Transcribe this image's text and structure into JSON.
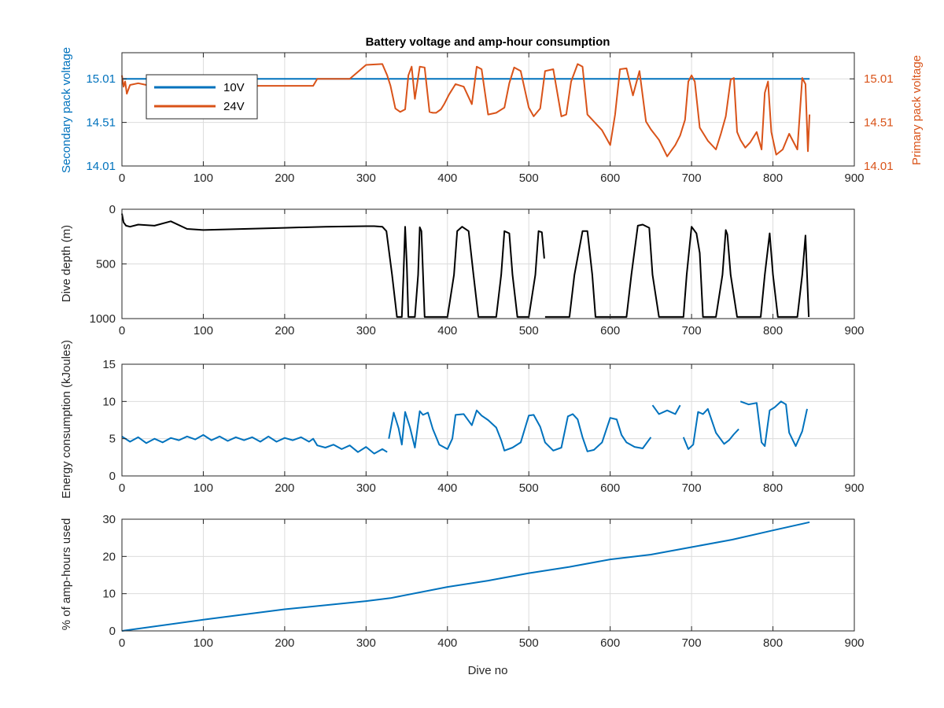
{
  "colors": {
    "blue": "#0072bd",
    "orange": "#d95319",
    "black": "#000000",
    "axis": "#262626",
    "grid": "#dcdcdc"
  },
  "chart_data": [
    {
      "type": "line",
      "title": "Battery voltage and amp-hour consumption",
      "xlabel": "",
      "ylabel": "Secondary pack voltage",
      "ylabel_right": "Primary pack voltage",
      "xlim": [
        0,
        900
      ],
      "ylim": [
        14.01,
        15.31
      ],
      "ylim_right": [
        14.01,
        15.31
      ],
      "x_ticks": [
        0,
        100,
        200,
        300,
        400,
        500,
        600,
        700,
        800,
        900
      ],
      "y_ticks": [
        "14.01",
        "14.51",
        "15.01"
      ],
      "y_ticks_right": [
        "14.01",
        "14.51",
        "15.01"
      ],
      "grid": true,
      "legend": {
        "position": "top-left",
        "entries": [
          "10V",
          "24V"
        ]
      },
      "series": [
        {
          "name": "10V",
          "axis": "left",
          "color": "#0072bd",
          "x": [
            0,
            845
          ],
          "y": [
            15.01,
            15.01
          ]
        },
        {
          "name": "24V",
          "axis": "right",
          "color": "#d95319",
          "x": [
            0,
            2,
            4,
            6,
            10,
            20,
            30,
            60,
            100,
            150,
            200,
            235,
            240,
            280,
            300,
            320,
            326,
            330,
            336,
            342,
            348,
            352,
            356,
            360,
            366,
            372,
            378,
            382,
            386,
            392,
            396,
            402,
            410,
            420,
            430,
            436,
            442,
            450,
            460,
            470,
            476,
            482,
            490,
            500,
            506,
            514,
            520,
            530,
            540,
            546,
            552,
            560,
            566,
            572,
            580,
            590,
            600,
            606,
            612,
            620,
            628,
            636,
            644,
            650,
            660,
            670,
            680,
            686,
            692,
            696,
            700,
            704,
            710,
            720,
            730,
            736,
            742,
            748,
            752,
            756,
            760,
            766,
            772,
            780,
            786,
            790,
            794,
            798,
            804,
            812,
            820,
            830,
            836,
            840,
            843,
            845
          ],
          "y": [
            15.05,
            14.92,
            14.98,
            14.84,
            14.94,
            14.96,
            14.94,
            14.93,
            14.94,
            14.93,
            14.93,
            14.93,
            15.01,
            15.01,
            15.17,
            15.18,
            15.05,
            14.93,
            14.67,
            14.63,
            14.66,
            15.05,
            15.15,
            14.78,
            15.15,
            15.14,
            14.63,
            14.62,
            14.62,
            14.66,
            14.72,
            14.83,
            14.95,
            14.92,
            14.72,
            15.15,
            15.12,
            14.6,
            14.62,
            14.68,
            14.96,
            15.14,
            15.1,
            14.68,
            14.58,
            14.67,
            15.1,
            15.12,
            14.58,
            14.6,
            14.98,
            15.18,
            15.15,
            14.6,
            14.52,
            14.42,
            14.25,
            14.6,
            15.12,
            15.13,
            14.82,
            15.1,
            14.52,
            14.43,
            14.31,
            14.12,
            14.25,
            14.36,
            14.54,
            14.98,
            15.05,
            14.98,
            14.45,
            14.3,
            14.2,
            14.38,
            14.58,
            15.0,
            15.02,
            14.4,
            14.31,
            14.22,
            14.28,
            14.4,
            14.2,
            14.85,
            14.98,
            14.4,
            14.14,
            14.2,
            14.38,
            14.2,
            15.02,
            14.95,
            14.18,
            14.6
          ]
        }
      ]
    },
    {
      "type": "line",
      "title": "",
      "xlabel": "",
      "ylabel": "Dive depth (m)",
      "xlim": [
        0,
        900
      ],
      "ylim": [
        1000,
        0
      ],
      "x_ticks": [
        0,
        100,
        200,
        300,
        400,
        500,
        600,
        700,
        800,
        900
      ],
      "y_ticks": [
        "0",
        "500",
        "1000"
      ],
      "grid": true,
      "series": [
        {
          "name": "",
          "color": "#000000",
          "x": [
            0,
            2,
            5,
            10,
            20,
            40,
            60,
            80,
            100,
            150,
            200,
            250,
            300,
            310,
            320,
            325,
            332,
            338,
            344,
            346,
            348,
            350,
            352,
            356,
            360,
            364,
            366,
            368,
            372,
            376,
            380,
            385,
            400,
            408,
            412,
            418,
            426,
            432,
            438,
            445,
            460,
            466,
            470,
            476,
            480,
            486,
            492,
            500,
            508,
            512,
            516,
            519,
            null,
            520,
            540,
            550,
            556,
            566,
            572,
            578,
            582,
            590,
            610,
            620,
            626,
            634,
            640,
            648,
            652,
            660,
            680,
            690,
            694,
            700,
            706,
            710,
            714,
            730,
            738,
            742,
            744,
            748,
            756,
            760,
            770,
            785,
            790,
            796,
            800,
            806,
            820,
            830,
            836,
            840,
            844
          ],
          "y": [
            40,
            120,
            150,
            160,
            140,
            150,
            110,
            180,
            190,
            180,
            170,
            160,
            155,
            155,
            160,
            200,
            600,
            985,
            985,
            600,
            160,
            500,
            985,
            985,
            985,
            600,
            165,
            200,
            985,
            985,
            985,
            985,
            985,
            600,
            200,
            160,
            200,
            600,
            985,
            985,
            985,
            600,
            200,
            220,
            600,
            985,
            985,
            985,
            600,
            200,
            210,
            450,
            null,
            985,
            985,
            985,
            600,
            200,
            200,
            600,
            985,
            985,
            985,
            985,
            600,
            150,
            140,
            170,
            600,
            985,
            985,
            985,
            600,
            160,
            220,
            400,
            985,
            985,
            600,
            190,
            230,
            600,
            985,
            985,
            985,
            985,
            600,
            220,
            600,
            985,
            985,
            985,
            600,
            240,
            985
          ]
        }
      ]
    },
    {
      "type": "line",
      "title": "",
      "xlabel": "",
      "ylabel": "Energy consumption (kJoules)",
      "xlim": [
        0,
        900
      ],
      "ylim": [
        0,
        15
      ],
      "x_ticks": [
        0,
        100,
        200,
        300,
        400,
        500,
        600,
        700,
        800,
        900
      ],
      "y_ticks": [
        "0",
        "5",
        "10",
        "15"
      ],
      "grid": true,
      "series": [
        {
          "name": "",
          "color": "#0072bd",
          "x": [
            0,
            10,
            20,
            30,
            40,
            50,
            60,
            70,
            80,
            90,
            100,
            110,
            120,
            130,
            140,
            150,
            160,
            170,
            180,
            190,
            200,
            210,
            220,
            230,
            235,
            240,
            250,
            260,
            270,
            280,
            290,
            300,
            310,
            320,
            326,
            null,
            328,
            334,
            340,
            344,
            348,
            354,
            360,
            366,
            370,
            376,
            382,
            390,
            400,
            406,
            410,
            420,
            430,
            436,
            442,
            450,
            460,
            466,
            470,
            480,
            490,
            500,
            506,
            514,
            520,
            530,
            540,
            548,
            554,
            560,
            566,
            572,
            580,
            590,
            600,
            608,
            614,
            620,
            630,
            640,
            650,
            null,
            652,
            660,
            670,
            680,
            686,
            null,
            690,
            696,
            702,
            708,
            714,
            720,
            730,
            740,
            746,
            752,
            758,
            null,
            760,
            770,
            780,
            786,
            790,
            796,
            802,
            810,
            816,
            820,
            828,
            836,
            842
          ],
          "y": [
            5.3,
            4.6,
            5.2,
            4.4,
            5.0,
            4.5,
            5.1,
            4.8,
            5.3,
            4.9,
            5.5,
            4.8,
            5.3,
            4.7,
            5.2,
            4.8,
            5.2,
            4.6,
            5.3,
            4.6,
            5.1,
            4.8,
            5.2,
            4.6,
            5.0,
            4.1,
            3.8,
            4.2,
            3.6,
            4.1,
            3.2,
            3.9,
            3.0,
            3.6,
            3.2,
            null,
            5.0,
            8.5,
            6.4,
            4.2,
            8.6,
            6.5,
            3.8,
            8.7,
            8.2,
            8.5,
            6.3,
            4.2,
            3.6,
            5.0,
            8.2,
            8.3,
            6.8,
            8.8,
            8.1,
            7.5,
            6.5,
            4.8,
            3.4,
            3.8,
            4.5,
            8.1,
            8.2,
            6.6,
            4.5,
            3.4,
            3.8,
            8.0,
            8.3,
            7.6,
            5.2,
            3.3,
            3.5,
            4.5,
            7.8,
            7.6,
            5.5,
            4.5,
            3.9,
            3.7,
            5.2,
            null,
            9.5,
            8.3,
            8.8,
            8.3,
            9.5,
            null,
            5.2,
            3.6,
            4.2,
            8.6,
            8.3,
            9.0,
            5.8,
            4.3,
            4.8,
            5.6,
            6.3,
            null,
            10.0,
            9.6,
            9.8,
            4.5,
            4.0,
            8.8,
            9.2,
            10.0,
            9.6,
            5.8,
            4.0,
            6.0,
            9.0
          ]
        }
      ]
    },
    {
      "type": "line",
      "title": "",
      "xlabel": "Dive no",
      "ylabel": "% of amp-hours used",
      "xlim": [
        0,
        900
      ],
      "ylim": [
        0,
        30
      ],
      "x_ticks": [
        0,
        100,
        200,
        300,
        400,
        500,
        600,
        700,
        800,
        900
      ],
      "y_ticks": [
        "0",
        "10",
        "20",
        "30"
      ],
      "grid": true,
      "series": [
        {
          "name": "",
          "color": "#0072bd",
          "x": [
            0,
            100,
            200,
            300,
            330,
            400,
            450,
            500,
            550,
            600,
            650,
            700,
            750,
            800,
            845
          ],
          "y": [
            0,
            3.0,
            5.8,
            8.0,
            8.8,
            11.8,
            13.5,
            15.5,
            17.2,
            19.2,
            20.5,
            22.5,
            24.5,
            27.0,
            29.2
          ]
        }
      ]
    }
  ]
}
